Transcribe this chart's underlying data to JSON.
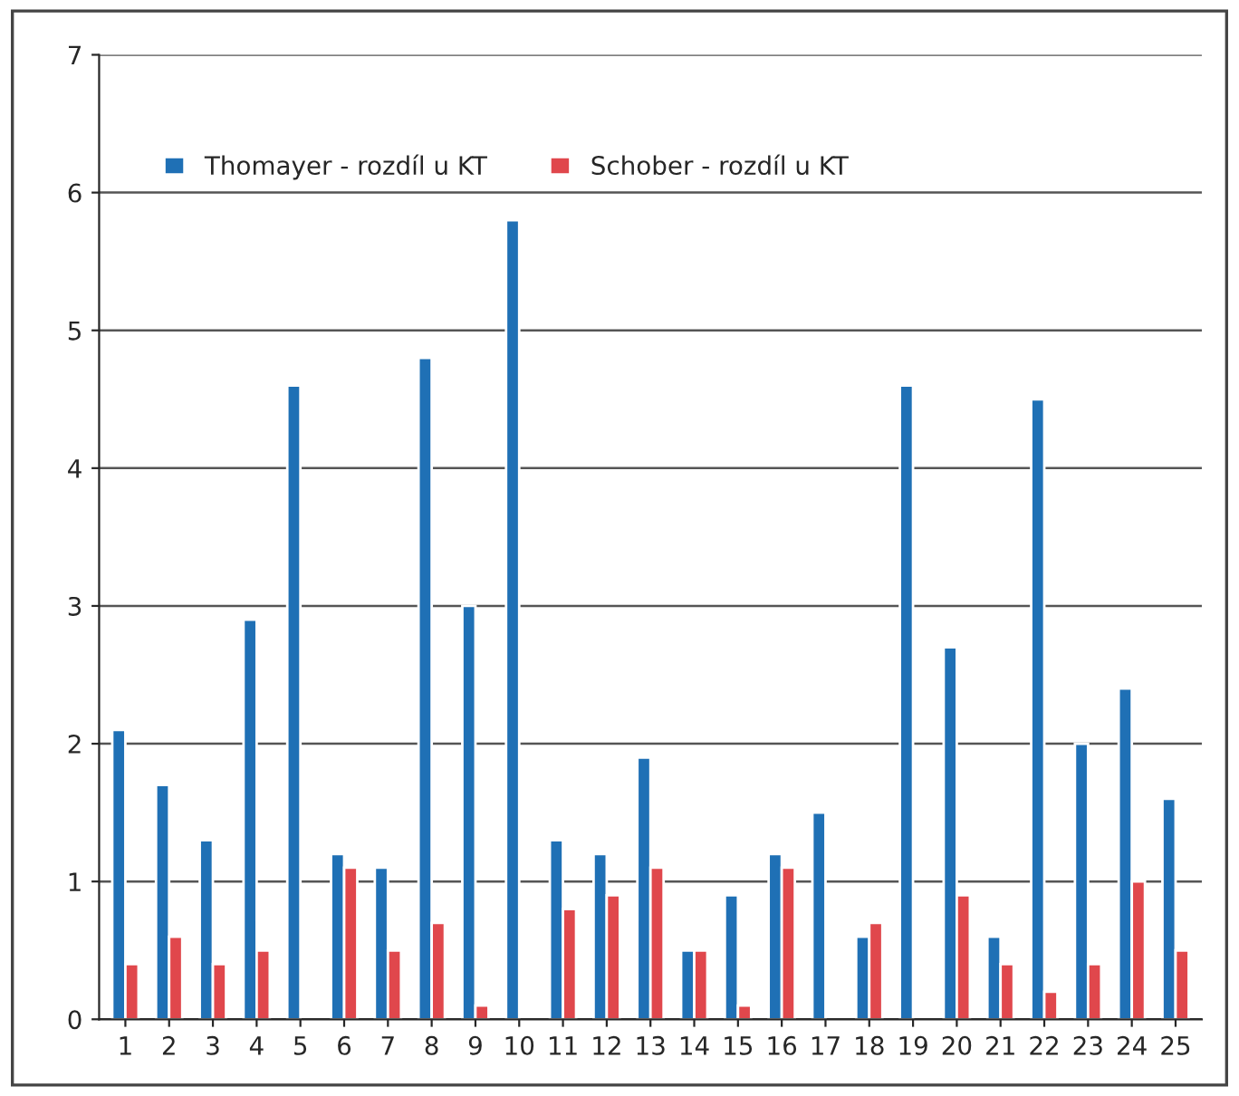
{
  "chart_data": {
    "type": "bar",
    "categories": [
      "1",
      "2",
      "3",
      "4",
      "5",
      "6",
      "7",
      "8",
      "9",
      "10",
      "11",
      "12",
      "13",
      "14",
      "15",
      "16",
      "17",
      "18",
      "19",
      "20",
      "21",
      "22",
      "23",
      "24",
      "25"
    ],
    "series": [
      {
        "name": "Thomayer - rozdíl u KT",
        "color": "#1f70b5",
        "values": [
          2.1,
          1.7,
          1.3,
          2.9,
          4.6,
          1.2,
          1.1,
          4.8,
          3.0,
          5.8,
          1.3,
          1.2,
          1.9,
          0.5,
          0.9,
          1.2,
          1.5,
          0.6,
          4.6,
          2.7,
          0.6,
          4.5,
          2.0,
          2.4,
          1.6
        ]
      },
      {
        "name": "Schober - rozdíl u KT",
        "color": "#e0474c",
        "values": [
          0.4,
          0.6,
          0.4,
          0.5,
          null,
          1.1,
          0.5,
          0.7,
          0.1,
          null,
          0.8,
          0.9,
          1.1,
          0.5,
          0.1,
          1.1,
          null,
          0.7,
          null,
          0.9,
          0.4,
          0.2,
          0.4,
          1.0,
          0.5
        ]
      }
    ],
    "ylim": [
      0,
      7
    ],
    "yticks": [
      0,
      1,
      2,
      3,
      4,
      5,
      6,
      7
    ],
    "grid": "y",
    "legend": "top left"
  }
}
